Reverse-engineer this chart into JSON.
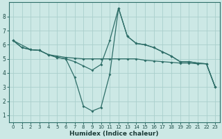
{
  "xlabel": "Humidex (Indice chaleur)",
  "ylabel": "",
  "bg_color": "#cce8e5",
  "grid_color": "#aacfcc",
  "line_color": "#2e6e68",
  "xlim": [
    -0.5,
    23.5
  ],
  "ylim": [
    0.5,
    9.0
  ],
  "xticks": [
    0,
    1,
    2,
    3,
    4,
    5,
    6,
    7,
    8,
    9,
    10,
    11,
    12,
    13,
    14,
    15,
    16,
    17,
    18,
    19,
    20,
    21,
    22,
    23
  ],
  "yticks": [
    1,
    2,
    3,
    4,
    5,
    6,
    7,
    8
  ],
  "line1_x": [
    0,
    1,
    2,
    3,
    4,
    5,
    6,
    7,
    8,
    9,
    10,
    11,
    12,
    13,
    14,
    15,
    16,
    17,
    18,
    19,
    20,
    21,
    22,
    23
  ],
  "line1_y": [
    6.3,
    5.8,
    5.65,
    5.6,
    5.3,
    5.2,
    5.1,
    5.05,
    5.0,
    5.0,
    5.0,
    5.0,
    5.0,
    5.0,
    5.0,
    4.9,
    4.85,
    4.8,
    4.75,
    4.7,
    4.7,
    4.65,
    4.65,
    3.0
  ],
  "line2_x": [
    0,
    1,
    2,
    3,
    4,
    5,
    6,
    7,
    8,
    9,
    10,
    11,
    12,
    13,
    14,
    15,
    16,
    17,
    18,
    19,
    20,
    21,
    22,
    23
  ],
  "line2_y": [
    6.3,
    5.8,
    5.65,
    5.6,
    5.3,
    5.1,
    5.0,
    4.8,
    4.5,
    4.2,
    4.6,
    6.3,
    8.6,
    6.6,
    6.1,
    6.0,
    5.8,
    5.5,
    5.2,
    4.8,
    4.8,
    4.7,
    4.65,
    3.0
  ],
  "line3_x": [
    0,
    2,
    3,
    4,
    5,
    6,
    7,
    8,
    9,
    10,
    11,
    12,
    13,
    14,
    15,
    16,
    17,
    18,
    19,
    20,
    21,
    22,
    23
  ],
  "line3_y": [
    6.3,
    5.65,
    5.6,
    5.3,
    5.1,
    5.0,
    3.7,
    1.65,
    1.3,
    1.55,
    3.9,
    8.6,
    6.6,
    6.1,
    6.0,
    5.8,
    5.5,
    5.2,
    4.8,
    4.8,
    4.7,
    4.65,
    3.0
  ]
}
